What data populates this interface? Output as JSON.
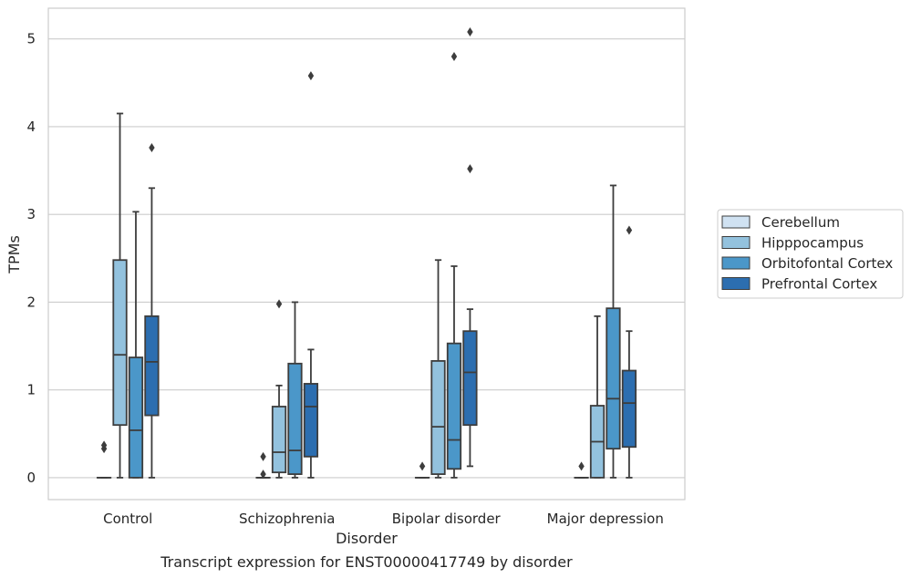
{
  "chart_data": {
    "type": "boxplot",
    "caption": "Transcript expression for ENST00000417749 by disorder",
    "xlabel": "Disorder",
    "ylabel": "TPMs",
    "ylim": [
      -0.25,
      5.35
    ],
    "yticks": [
      0,
      1,
      2,
      3,
      4,
      5
    ],
    "grid": true,
    "legend_position": "right",
    "categories": [
      "Control",
      "Schizophrenia",
      "Bipolar disorder",
      "Major depression"
    ],
    "series": [
      {
        "name": "Cerebellum",
        "color": "#d0e2f2",
        "boxes": [
          {
            "q1": 0,
            "median": 0,
            "q3": 0,
            "whisker_low": 0,
            "whisker_high": 0,
            "outliers": [
              0.33,
              0.37
            ]
          },
          {
            "q1": 0,
            "median": 0,
            "q3": 0,
            "whisker_low": 0,
            "whisker_high": 0,
            "outliers": [
              0.04,
              0.24
            ]
          },
          {
            "q1": 0,
            "median": 0,
            "q3": 0,
            "whisker_low": 0,
            "whisker_high": 0,
            "outliers": [
              0.13
            ]
          },
          {
            "q1": 0,
            "median": 0,
            "q3": 0,
            "whisker_low": 0,
            "whisker_high": 0,
            "outliers": [
              0.13
            ]
          }
        ]
      },
      {
        "name": "Hipppocampus",
        "color": "#93c2de",
        "boxes": [
          {
            "q1": 0.6,
            "median": 1.4,
            "q3": 2.48,
            "whisker_low": 0,
            "whisker_high": 4.15,
            "outliers": []
          },
          {
            "q1": 0.06,
            "median": 0.29,
            "q3": 0.81,
            "whisker_low": 0,
            "whisker_high": 1.05,
            "outliers": [
              1.98
            ]
          },
          {
            "q1": 0.04,
            "median": 0.58,
            "q3": 1.33,
            "whisker_low": 0,
            "whisker_high": 2.48,
            "outliers": []
          },
          {
            "q1": 0,
            "median": 0.41,
            "q3": 0.82,
            "whisker_low": 0,
            "whisker_high": 1.84,
            "outliers": []
          }
        ]
      },
      {
        "name": "Orbitofontal Cortex",
        "color": "#4b97c9",
        "boxes": [
          {
            "q1": 0,
            "median": 0.54,
            "q3": 1.37,
            "whisker_low": 0,
            "whisker_high": 3.03,
            "outliers": []
          },
          {
            "q1": 0.04,
            "median": 0.31,
            "q3": 1.3,
            "whisker_low": 0,
            "whisker_high": 2.0,
            "outliers": []
          },
          {
            "q1": 0.1,
            "median": 0.43,
            "q3": 1.53,
            "whisker_low": 0,
            "whisker_high": 2.41,
            "outliers": [
              4.8
            ]
          },
          {
            "q1": 0.33,
            "median": 0.9,
            "q3": 1.93,
            "whisker_low": 0,
            "whisker_high": 3.33,
            "outliers": []
          }
        ]
      },
      {
        "name": "Prefrontal Cortex",
        "color": "#2c6eb0",
        "boxes": [
          {
            "q1": 0.71,
            "median": 1.32,
            "q3": 1.84,
            "whisker_low": 0,
            "whisker_high": 3.3,
            "outliers": [
              3.76
            ]
          },
          {
            "q1": 0.24,
            "median": 0.81,
            "q3": 1.07,
            "whisker_low": 0,
            "whisker_high": 1.46,
            "outliers": [
              4.58
            ]
          },
          {
            "q1": 0.6,
            "median": 1.2,
            "q3": 1.67,
            "whisker_low": 0.13,
            "whisker_high": 1.92,
            "outliers": [
              3.52,
              5.08
            ]
          },
          {
            "q1": 0.35,
            "median": 0.85,
            "q3": 1.22,
            "whisker_low": 0,
            "whisker_high": 1.67,
            "outliers": [
              2.82
            ]
          }
        ]
      }
    ]
  }
}
